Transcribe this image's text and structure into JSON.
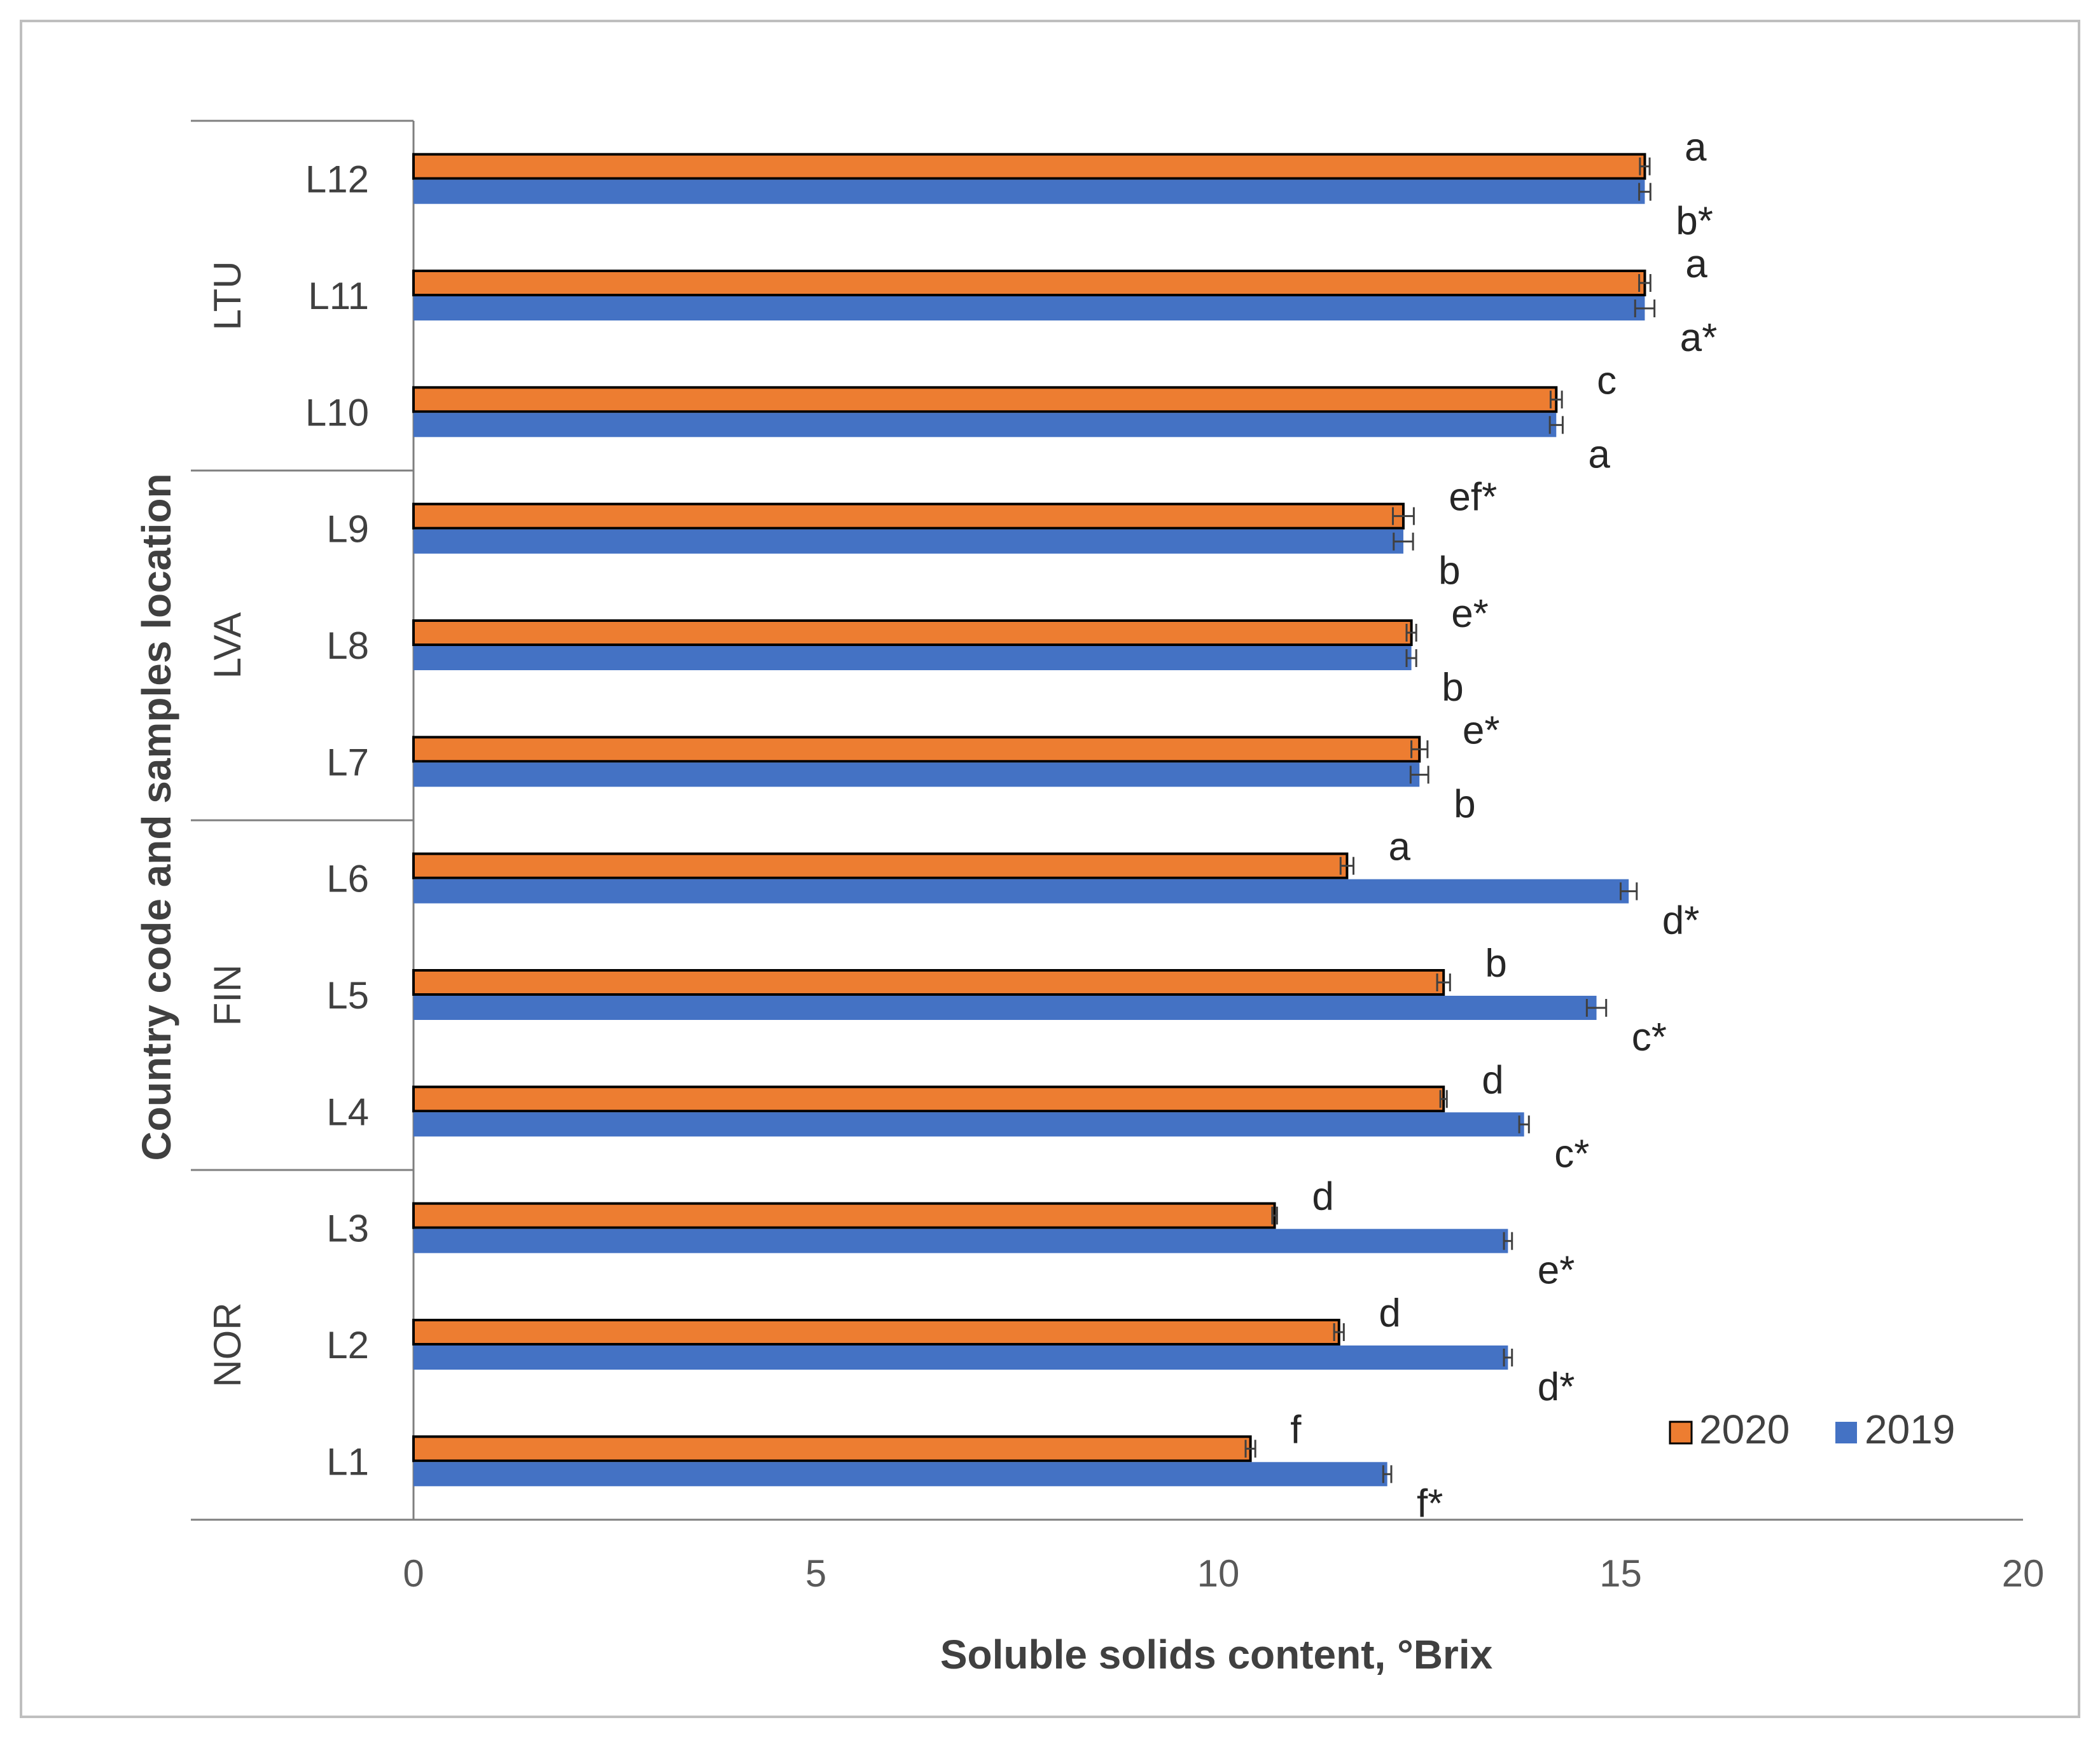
{
  "chart_data": {
    "type": "bar",
    "orientation": "horizontal",
    "xlabel": "Soluble solids content, °Brix",
    "ylabel": "Country code and samples location",
    "xlim": [
      0,
      20
    ],
    "xticks": [
      0,
      5,
      10,
      15,
      20
    ],
    "grid": false,
    "legend_position": "bottom-right",
    "categories": [
      "L1",
      "L2",
      "L3",
      "L4",
      "L5",
      "L6",
      "L7",
      "L8",
      "L9",
      "L10",
      "L11",
      "L12"
    ],
    "groups": [
      {
        "name": "NOR",
        "categories": [
          "L1",
          "L2",
          "L3"
        ]
      },
      {
        "name": "FIN",
        "categories": [
          "L4",
          "L5",
          "L6"
        ]
      },
      {
        "name": "LVA",
        "categories": [
          "L7",
          "L8",
          "L9"
        ]
      },
      {
        "name": "LTU",
        "categories": [
          "L10",
          "L11",
          "L12"
        ]
      }
    ],
    "series": [
      {
        "name": "2020",
        "color": "#ED7D31",
        "values": [
          10.4,
          11.5,
          10.7,
          12.8,
          12.8,
          11.6,
          12.5,
          12.4,
          12.3,
          14.2,
          15.3,
          15.3
        ],
        "errors": [
          0.06,
          0.06,
          0.03,
          0.04,
          0.08,
          0.08,
          0.1,
          0.06,
          0.13,
          0.07,
          0.07,
          0.06
        ],
        "labels": [
          "f",
          "d",
          "d",
          "d",
          "b",
          "a",
          "e*",
          "e*",
          "ef*",
          "c",
          "a",
          "a"
        ]
      },
      {
        "name": "2019",
        "color": "#4472C4",
        "values": [
          12.1,
          13.6,
          13.6,
          13.8,
          14.7,
          15.1,
          12.5,
          12.4,
          12.3,
          14.2,
          15.3,
          15.3
        ],
        "errors": [
          0.05,
          0.05,
          0.05,
          0.06,
          0.12,
          0.1,
          0.11,
          0.06,
          0.12,
          0.08,
          0.12,
          0.07
        ],
        "labels": [
          "f*",
          "d*",
          "e*",
          "c*",
          "c*",
          "d*",
          "b",
          "b",
          "b",
          "a",
          "a*",
          "b*"
        ]
      }
    ]
  }
}
